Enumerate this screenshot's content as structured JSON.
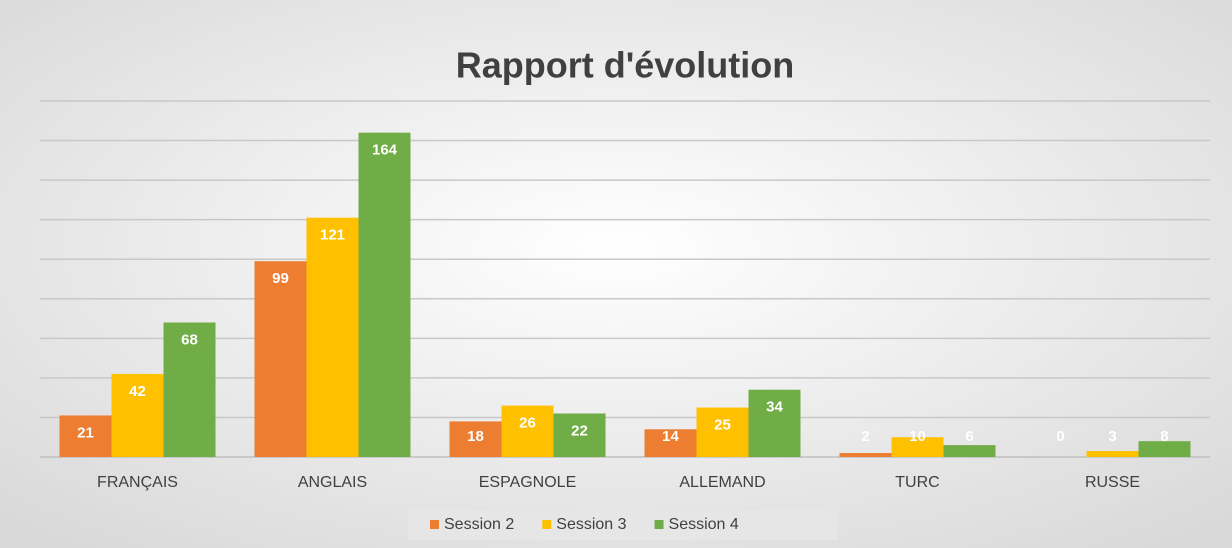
{
  "chart_data": {
    "type": "bar",
    "title": "Rapport d'évolution",
    "categories": [
      "FRANÇAIS",
      "ANGLAIS",
      "ESPAGNOLE",
      "ALLEMAND",
      "TURC",
      "RUSSE"
    ],
    "series": [
      {
        "name": "Session 2",
        "color": "#ed7d31",
        "values": [
          21,
          99,
          18,
          14,
          2,
          0
        ]
      },
      {
        "name": "Session 3",
        "color": "#ffc000",
        "values": [
          42,
          121,
          26,
          25,
          10,
          3
        ]
      },
      {
        "name": "Session 4",
        "color": "#70ad47",
        "values": [
          68,
          164,
          22,
          34,
          6,
          8
        ]
      }
    ],
    "ylim": [
      0,
      180
    ],
    "yticks": [
      0,
      20,
      40,
      60,
      80,
      100,
      120,
      140,
      160,
      180
    ],
    "grid": true,
    "legend": "bottom"
  }
}
